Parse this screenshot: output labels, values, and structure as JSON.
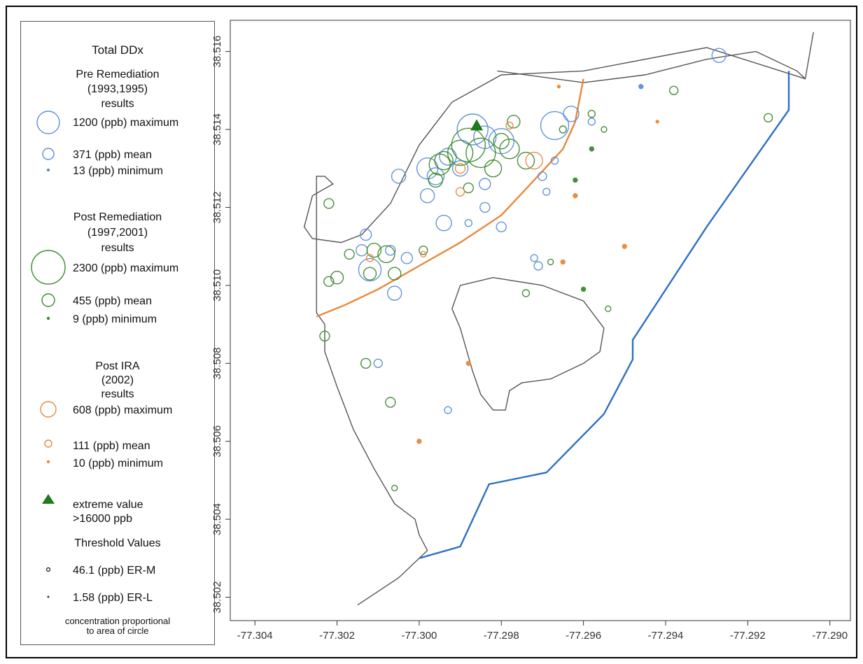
{
  "legend": {
    "title": "Total DDx",
    "pre": {
      "heading": [
        "Pre Remediation",
        "(1993,1995)",
        "results"
      ],
      "color": "#5b8fd6",
      "items": [
        {
          "label": "1200 (ppb) maximum",
          "value": 1200
        },
        {
          "label": "371 (ppb) mean",
          "value": 371
        },
        {
          "label": "13 (ppb) minimum",
          "value": 13
        }
      ]
    },
    "post": {
      "heading": [
        "Post Remediation",
        "(1997,2001)",
        "results"
      ],
      "color": "#3c8a2e",
      "items": [
        {
          "label": "2300 (ppb) maximum",
          "value": 2300
        },
        {
          "label": "455 (ppb) mean",
          "value": 455
        },
        {
          "label": "9 (ppb) minimum",
          "value": 9
        }
      ]
    },
    "ira": {
      "heading": [
        "Post IRA",
        "(2002)",
        "results"
      ],
      "color": "#e8883a",
      "items": [
        {
          "label": "608 (ppb) maximum",
          "value": 608
        },
        {
          "label": "111 (ppb) mean",
          "value": 111
        },
        {
          "label": "10 (ppb) minimum",
          "value": 10
        }
      ]
    },
    "extreme": {
      "label_1": "extreme value",
      "label_2": ">16000 ppb",
      "color": "#1e7a1e"
    },
    "thresholds": {
      "heading": "Threshold Values",
      "items": [
        {
          "label": "46.1 (ppb) ER-M",
          "value": 46.1
        },
        {
          "label": "1.58 (ppb) ER-L",
          "value": 1.58
        }
      ]
    },
    "footnote": [
      "concentration proportional",
      "to area of circle"
    ]
  },
  "axes": {
    "x_ticks": [
      -77.304,
      -77.302,
      -77.3,
      -77.298,
      -77.296,
      -77.294,
      -77.292,
      -77.29
    ],
    "y_ticks": [
      38.502,
      38.504,
      38.506,
      38.508,
      38.51,
      38.512,
      38.514,
      38.516
    ],
    "x_labels": [
      "-77.304",
      "-77.302",
      "-77.300",
      "-77.298",
      "-77.296",
      "-77.294",
      "-77.292",
      "-77.290"
    ],
    "y_labels": [
      "38.502",
      "38.504",
      "38.506",
      "38.508",
      "38.510",
      "38.512",
      "38.514",
      "38.516"
    ],
    "xlim": [
      -77.3046,
      -77.2895
    ],
    "ylim": [
      38.5014,
      38.5168
    ]
  },
  "colors": {
    "shoreline": "#555555",
    "orange_line": "#e8883a",
    "blue_line": "#2c6fc8",
    "pre": "#5b8fd6",
    "post": "#3c8a2e",
    "ira": "#e8883a"
  },
  "shoreline": [
    [
      -77.2981,
      38.5155
    ],
    [
      -77.296,
      38.5152
    ],
    [
      -77.2945,
      38.5154
    ],
    [
      -77.293,
      38.5158
    ],
    [
      -77.2918,
      38.516
    ],
    [
      -77.2908,
      38.5155
    ],
    [
      -77.2906,
      38.5153
    ],
    [
      -77.2904,
      38.5165
    ]
  ],
  "shoreline_main": [
    [
      -77.2906,
      38.5153
    ],
    [
      -77.293,
      38.5161
    ],
    [
      -77.296,
      38.5155
    ],
    [
      -77.298,
      38.5154
    ],
    [
      -77.2992,
      38.5147
    ],
    [
      -77.3,
      38.5136
    ],
    [
      -77.3007,
      38.5121
    ],
    [
      -77.3014,
      38.5113
    ],
    [
      -77.3019,
      38.5111
    ],
    [
      -77.3026,
      38.5112
    ],
    [
      -77.3028,
      38.5115
    ],
    [
      -77.3026,
      38.5123
    ],
    [
      -77.3021,
      38.5126
    ],
    [
      -77.3023,
      38.5128
    ],
    [
      -77.3025,
      38.5128
    ],
    [
      -77.3025,
      38.5093
    ],
    [
      -77.3023,
      38.509
    ],
    [
      -77.3023,
      38.5083
    ],
    [
      -77.302,
      38.5074
    ],
    [
      -77.3016,
      38.5063
    ],
    [
      -77.3011,
      38.5053
    ],
    [
      -77.3006,
      38.5044
    ],
    [
      -77.3001,
      38.504
    ],
    [
      -77.3,
      38.5036
    ],
    [
      -77.2998,
      38.5032
    ],
    [
      -77.3005,
      38.5025
    ],
    [
      -77.3015,
      38.5018
    ]
  ],
  "lagoon": [
    [
      -77.299,
      38.51
    ],
    [
      -77.2982,
      38.5102
    ],
    [
      -77.297,
      38.51
    ],
    [
      -77.296,
      38.5096
    ],
    [
      -77.2955,
      38.5089
    ],
    [
      -77.2956,
      38.5083
    ],
    [
      -77.296,
      38.508
    ],
    [
      -77.2968,
      38.5076
    ],
    [
      -77.2975,
      38.5075
    ],
    [
      -77.2978,
      38.5073
    ],
    [
      -77.2979,
      38.5068
    ],
    [
      -77.2982,
      38.5068
    ],
    [
      -77.2985,
      38.5072
    ],
    [
      -77.2987,
      38.5078
    ],
    [
      -77.299,
      38.5089
    ],
    [
      -77.2992,
      38.5094
    ],
    [
      -77.299,
      38.51
    ]
  ],
  "orange_line": [
    [
      -77.3025,
      38.5092
    ],
    [
      -77.3018,
      38.5095
    ],
    [
      -77.301,
      38.5099
    ],
    [
      -77.3,
      38.5105
    ],
    [
      -77.299,
      38.5111
    ],
    [
      -77.298,
      38.5118
    ],
    [
      -77.2972,
      38.5127
    ],
    [
      -77.2965,
      38.5135
    ],
    [
      -77.2962,
      38.5142
    ],
    [
      -77.296,
      38.5153
    ]
  ],
  "blue_line": [
    [
      -77.3,
      38.503
    ],
    [
      -77.299,
      38.5033
    ],
    [
      -77.2983,
      38.5049
    ],
    [
      -77.2969,
      38.5052
    ],
    [
      -77.2955,
      38.5067
    ],
    [
      -77.2948,
      38.5081
    ],
    [
      -77.2948,
      38.5086
    ],
    [
      -77.293,
      38.5115
    ],
    [
      -77.291,
      38.5145
    ],
    [
      -77.291,
      38.5155
    ]
  ],
  "samples": {
    "pre": [
      [
        -77.2987,
        38.514,
        22
      ],
      [
        -77.298,
        38.5137,
        18
      ],
      [
        -77.2984,
        38.5138,
        16
      ],
      [
        -77.2967,
        38.5141,
        20
      ],
      [
        -77.2963,
        38.5144,
        11
      ],
      [
        -77.2927,
        38.5159,
        10
      ],
      [
        -77.2996,
        38.5128,
        12
      ],
      [
        -77.2998,
        38.513,
        15
      ],
      [
        -77.2993,
        38.5133,
        12
      ],
      [
        -77.299,
        38.513,
        11
      ],
      [
        -77.2994,
        38.5116,
        11
      ],
      [
        -77.2998,
        38.5123,
        10
      ],
      [
        -77.2984,
        38.5126,
        8
      ],
      [
        -77.2984,
        38.512,
        7
      ],
      [
        -77.3005,
        38.5128,
        10
      ],
      [
        -77.3012,
        38.5104,
        16
      ],
      [
        -77.3006,
        38.5098,
        10
      ],
      [
        -77.3013,
        38.5113,
        8
      ],
      [
        -77.3014,
        38.5109,
        8
      ],
      [
        -77.3007,
        38.5109,
        7
      ],
      [
        -77.3003,
        38.5107,
        8
      ],
      [
        -77.298,
        38.5115,
        7
      ],
      [
        -77.297,
        38.5128,
        6
      ],
      [
        -77.2969,
        38.5124,
        5
      ],
      [
        -77.301,
        38.508,
        6
      ],
      [
        -77.2993,
        38.5068,
        5
      ],
      [
        -77.2971,
        38.5105,
        6
      ],
      [
        -77.2972,
        38.5107,
        5
      ],
      [
        -77.2967,
        38.5132,
        5
      ],
      [
        -77.2958,
        38.5142,
        5
      ],
      [
        -77.2946,
        38.5151,
        3
      ],
      [
        -77.2988,
        38.5116,
        5
      ]
    ],
    "post": [
      [
        -77.2988,
        38.5136,
        24
      ],
      [
        -77.2985,
        38.5134,
        21
      ],
      [
        -77.299,
        38.5134,
        18
      ],
      [
        -77.2995,
        38.5131,
        15
      ],
      [
        -77.2994,
        38.5132,
        13
      ],
      [
        -77.2978,
        38.5135,
        14
      ],
      [
        -77.298,
        38.5137,
        11
      ],
      [
        -77.2977,
        38.5142,
        9
      ],
      [
        -77.2974,
        38.5132,
        12
      ],
      [
        -77.2982,
        38.513,
        12
      ],
      [
        -77.2996,
        38.5127,
        10
      ],
      [
        -77.3008,
        38.5108,
        12
      ],
      [
        -77.3011,
        38.5109,
        10
      ],
      [
        -77.3012,
        38.5103,
        9
      ],
      [
        -77.302,
        38.5102,
        9
      ],
      [
        -77.3022,
        38.5101,
        7
      ],
      [
        -77.3006,
        38.5103,
        9
      ],
      [
        -77.3022,
        38.5121,
        7
      ],
      [
        -77.3017,
        38.5108,
        7
      ],
      [
        -77.2999,
        38.5109,
        6
      ],
      [
        -77.2988,
        38.5125,
        7
      ],
      [
        -77.3023,
        38.5087,
        7
      ],
      [
        -77.3013,
        38.508,
        7
      ],
      [
        -77.3007,
        38.507,
        7
      ],
      [
        -77.2974,
        38.5098,
        5
      ],
      [
        -77.2965,
        38.514,
        5
      ],
      [
        -77.2958,
        38.5144,
        5
      ],
      [
        -77.2938,
        38.515,
        6
      ],
      [
        -77.2915,
        38.5143,
        6
      ],
      [
        -77.2955,
        38.514,
        4
      ],
      [
        -77.2958,
        38.5135,
        3
      ],
      [
        -77.2968,
        38.5106,
        4
      ],
      [
        -77.296,
        38.5099,
        3
      ],
      [
        -77.2954,
        38.5094,
        4
      ],
      [
        -77.3006,
        38.5048,
        4
      ],
      [
        -77.2962,
        38.5127,
        3
      ]
    ],
    "ira": [
      [
        -77.2972,
        38.5132,
        12
      ],
      [
        -77.299,
        38.513,
        7
      ],
      [
        -77.299,
        38.5124,
        6
      ],
      [
        -77.2978,
        38.5141,
        5
      ],
      [
        -77.3012,
        38.5107,
        5
      ],
      [
        -77.2999,
        38.5108,
        4
      ],
      [
        -77.2962,
        38.5123,
        3
      ],
      [
        -77.295,
        38.511,
        3
      ],
      [
        -77.2965,
        38.5106,
        3
      ],
      [
        -77.2988,
        38.508,
        3
      ],
      [
        -77.3,
        38.506,
        3
      ],
      [
        -77.2942,
        38.5142,
        2
      ],
      [
        -77.2966,
        38.5151,
        2
      ]
    ],
    "extreme": [
      -77.2986,
      38.5141
    ]
  }
}
